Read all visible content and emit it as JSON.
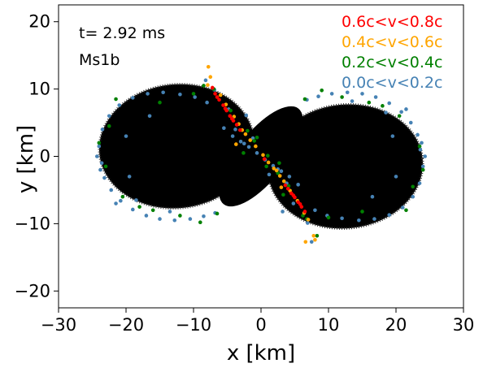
{
  "chart_data": {
    "type": "scatter",
    "xlabel": "x [km]",
    "ylabel": "y [km]",
    "xlim": [
      -30,
      30
    ],
    "ylim": [
      -22.5,
      22.5
    ],
    "xticks": [
      -30,
      -20,
      -10,
      0,
      10,
      20,
      30
    ],
    "yticks": [
      -20,
      -10,
      0,
      10,
      20
    ],
    "x_tick_labels": [
      "−30",
      "−20",
      "−10",
      "0",
      "10",
      "20",
      "30"
    ],
    "y_tick_labels": [
      "−20",
      "−10",
      "0",
      "10",
      "20"
    ],
    "grid": false,
    "annotations": [
      {
        "text": "t= 2.92 ms",
        "x": -27,
        "y": 18.2
      },
      {
        "text": "Ms1b",
        "x": -27,
        "y": 14.2
      }
    ],
    "legend_position": "top-right",
    "background_density": {
      "description_shape": "two lobes joined in a figure-eight",
      "color": "#000000",
      "lobes": [
        {
          "center": [
            -12.5,
            1.5
          ],
          "x_half_width": 11.5,
          "y_half_height": 9.2
        },
        {
          "center": [
            12.5,
            -1.5
          ],
          "x_half_width": 11.5,
          "y_half_height": 9.2
        }
      ]
    },
    "series": [
      {
        "name": "0.6c<v<0.8c",
        "color": "#ff0000",
        "points": [
          [
            -6.8,
            9.3
          ],
          [
            -6.2,
            8.4
          ],
          [
            -5.6,
            7.6
          ],
          [
            -5.1,
            6.8
          ],
          [
            -4.6,
            6.0
          ],
          [
            -4.1,
            5.3
          ],
          [
            -3.6,
            4.7
          ],
          [
            -6.5,
            8.8
          ],
          [
            -5.3,
            7.1
          ],
          [
            -4.3,
            5.6
          ],
          [
            -7.2,
            10.2
          ],
          [
            4.0,
            -4.8
          ],
          [
            4.5,
            -5.5
          ],
          [
            5.0,
            -6.1
          ],
          [
            5.5,
            -6.8
          ],
          [
            6.0,
            -7.5
          ],
          [
            6.5,
            -8.2
          ],
          [
            4.8,
            -5.8
          ],
          [
            5.8,
            -7.1
          ],
          [
            3.6,
            -4.3
          ],
          [
            -3.1,
            3.9
          ],
          [
            0.5,
            -0.4
          ]
        ]
      },
      {
        "name": "0.4c<v<0.6c",
        "color": "#ffa500",
        "points": [
          [
            -7.8,
            13.3
          ],
          [
            -7.5,
            11.8
          ],
          [
            -7.9,
            10.6
          ],
          [
            -6.0,
            9.1
          ],
          [
            -5.2,
            7.7
          ],
          [
            -4.0,
            5.9
          ],
          [
            -3.3,
            4.8
          ],
          [
            -2.3,
            3.3
          ],
          [
            -1.6,
            2.4
          ],
          [
            -0.8,
            1.5
          ],
          [
            0.3,
            0.2
          ],
          [
            1.1,
            -0.9
          ],
          [
            1.9,
            -1.8
          ],
          [
            2.8,
            -2.9
          ],
          [
            3.4,
            -3.7
          ],
          [
            4.3,
            -5.1
          ],
          [
            5.4,
            -6.6
          ],
          [
            6.4,
            -8.4
          ],
          [
            7.0,
            -9.4
          ],
          [
            7.8,
            -11.8
          ],
          [
            6.6,
            -12.7
          ],
          [
            8.0,
            -12.4
          ],
          [
            -3.7,
            1.8
          ],
          [
            2.3,
            -2.1
          ],
          [
            -2.8,
            3.9
          ],
          [
            3.0,
            -4.6
          ]
        ]
      },
      {
        "name": "0.2c<v<0.4c",
        "color": "#008000",
        "points": [
          [
            -21.5,
            8.5
          ],
          [
            -15.0,
            8.0
          ],
          [
            -10.0,
            9.3
          ],
          [
            -23.0,
            -1.5
          ],
          [
            -20.5,
            -6.0
          ],
          [
            -16.0,
            -8.0
          ],
          [
            -12.0,
            -8.8
          ],
          [
            -6.5,
            -8.5
          ],
          [
            -9.0,
            -9.8
          ],
          [
            -24.0,
            2.0
          ],
          [
            -22.5,
            4.5
          ],
          [
            -18.0,
            -7.5
          ],
          [
            21.5,
            -8.0
          ],
          [
            15.0,
            -8.2
          ],
          [
            10.0,
            -9.1
          ],
          [
            23.5,
            1.5
          ],
          [
            20.5,
            6.0
          ],
          [
            16.0,
            8.0
          ],
          [
            12.0,
            8.8
          ],
          [
            6.5,
            8.5
          ],
          [
            9.0,
            9.8
          ],
          [
            24.0,
            -2.0
          ],
          [
            22.5,
            -4.5
          ],
          [
            18.0,
            7.5
          ],
          [
            -8.5,
            10.5
          ],
          [
            -7.0,
            10.0
          ],
          [
            -4.5,
            6.8
          ],
          [
            -2.0,
            3.8
          ],
          [
            -1.0,
            2.3
          ],
          [
            1.0,
            0.1
          ],
          [
            2.5,
            -2.5
          ],
          [
            4.1,
            -4.4
          ],
          [
            6.8,
            -9.3
          ],
          [
            8.3,
            -11.8
          ],
          [
            6.2,
            -8.8
          ],
          [
            -2.6,
            0.5
          ],
          [
            2.7,
            -1.0
          ],
          [
            0.8,
            -1.5
          ],
          [
            -0.6,
            2.8
          ],
          [
            3.3,
            -5.7
          ]
        ]
      },
      {
        "name": "0.0c<v<0.2c",
        "color": "#4682b4",
        "points": [
          [
            -23.5,
            4.0
          ],
          [
            -24.0,
            1.5
          ],
          [
            -23.6,
            -1.0
          ],
          [
            -23.2,
            -3.2
          ],
          [
            -22.2,
            -5.0
          ],
          [
            -20.8,
            -6.6
          ],
          [
            -19.0,
            -7.9
          ],
          [
            -17.0,
            -8.8
          ],
          [
            -15.0,
            -9.3
          ],
          [
            -12.8,
            -9.5
          ],
          [
            -10.5,
            -9.3
          ],
          [
            -8.5,
            -8.9
          ],
          [
            -6.8,
            -8.4
          ],
          [
            -22.5,
            6.0
          ],
          [
            -21.0,
            7.6
          ],
          [
            -19.0,
            8.7
          ],
          [
            -16.8,
            9.3
          ],
          [
            -14.5,
            9.5
          ],
          [
            -12.0,
            9.2
          ],
          [
            -9.8,
            8.8
          ],
          [
            -8.0,
            8.0
          ],
          [
            -23.8,
            -2.0
          ],
          [
            -24.3,
            0.0
          ],
          [
            -21.5,
            -7.0
          ],
          [
            -13.5,
            -8.2
          ],
          [
            -18.5,
            -6.5
          ],
          [
            -20.0,
            3.0
          ],
          [
            -19.5,
            -3.0
          ],
          [
            -16.5,
            6.0
          ],
          [
            23.5,
            -4.0
          ],
          [
            24.0,
            -1.5
          ],
          [
            23.6,
            1.0
          ],
          [
            23.2,
            3.2
          ],
          [
            22.2,
            5.0
          ],
          [
            20.8,
            6.6
          ],
          [
            19.0,
            7.9
          ],
          [
            17.0,
            8.8
          ],
          [
            15.0,
            9.3
          ],
          [
            12.8,
            9.5
          ],
          [
            10.5,
            9.3
          ],
          [
            8.5,
            8.9
          ],
          [
            6.8,
            8.4
          ],
          [
            22.5,
            -6.0
          ],
          [
            21.0,
            -7.6
          ],
          [
            19.0,
            -8.7
          ],
          [
            16.8,
            -9.3
          ],
          [
            14.5,
            -9.5
          ],
          [
            12.0,
            -9.2
          ],
          [
            9.8,
            -8.8
          ],
          [
            8.0,
            -8.0
          ],
          [
            23.8,
            2.0
          ],
          [
            24.3,
            0.0
          ],
          [
            21.5,
            7.0
          ],
          [
            13.5,
            8.2
          ],
          [
            18.5,
            6.5
          ],
          [
            20.0,
            -3.0
          ],
          [
            19.5,
            3.0
          ],
          [
            16.5,
            -6.0
          ],
          [
            -5.5,
            4.2
          ],
          [
            -4.2,
            3.0
          ],
          [
            -3.0,
            2.2
          ],
          [
            -1.8,
            1.4
          ],
          [
            -0.6,
            0.5
          ],
          [
            0.6,
            -0.5
          ],
          [
            1.8,
            -1.4
          ],
          [
            3.0,
            -2.2
          ],
          [
            4.2,
            -3.0
          ],
          [
            5.5,
            -4.2
          ],
          [
            -2.5,
            1.9
          ],
          [
            2.5,
            -1.9
          ],
          [
            -1.2,
            2.7
          ],
          [
            1.2,
            -2.7
          ],
          [
            -3.8,
            4.0
          ],
          [
            3.8,
            -4.0
          ],
          [
            4.8,
            -7.0
          ],
          [
            -4.8,
            7.0
          ],
          [
            6.9,
            -9.9
          ],
          [
            -6.9,
            9.9
          ],
          [
            7.5,
            -12.7
          ],
          [
            -8.2,
            11.3
          ],
          [
            3.2,
            -8.2
          ],
          [
            -2.2,
            6.1
          ]
        ]
      }
    ]
  }
}
